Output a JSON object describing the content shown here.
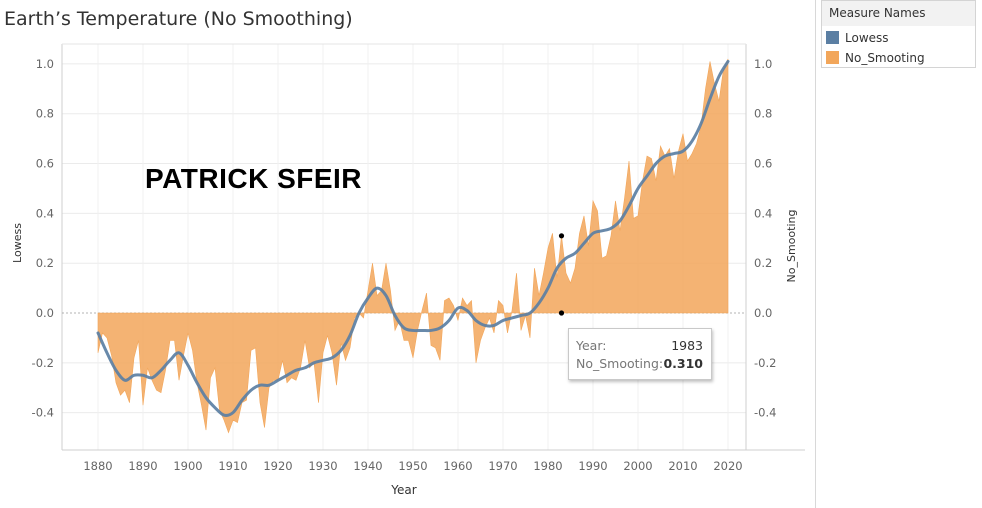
{
  "title": "Earth’s Temperature (No Smoothing)",
  "watermark_text": "PATRICK SFEIR",
  "legend": {
    "title": "Measure Names",
    "items": [
      {
        "label": "Lowess",
        "color": "#5b7fa3"
      },
      {
        "label": "No_Smooting",
        "color": "#f2a65a"
      }
    ]
  },
  "tooltip": {
    "year_label": "Year:",
    "year_value": "1983",
    "smooth_label": "No_Smooting:",
    "smooth_value": "0.310"
  },
  "chart_data": {
    "type": "area",
    "xlabel": "Year",
    "ylabel_left": "Lowess",
    "ylabel_right": "No_Smooting",
    "xlim": [
      1872,
      2024
    ],
    "ylim": [
      -0.55,
      1.08
    ],
    "x_ticks": [
      1880,
      1890,
      1900,
      1910,
      1920,
      1930,
      1940,
      1950,
      1960,
      1970,
      1980,
      1990,
      2000,
      2010,
      2020
    ],
    "y_ticks": [
      -0.4,
      -0.2,
      0.0,
      0.2,
      0.4,
      0.6,
      0.8,
      1.0
    ],
    "y_tick_labels": [
      "-0.4",
      "-0.2",
      "0.0",
      "0.2",
      "0.4",
      "0.6",
      "0.8",
      "1.0"
    ],
    "grid": true,
    "highlight": {
      "year": 1983,
      "value": 0.31
    },
    "series": [
      {
        "name": "No_Smooting",
        "color": "#f2a65a",
        "x": [
          1880,
          1881,
          1882,
          1883,
          1884,
          1885,
          1886,
          1887,
          1888,
          1889,
          1890,
          1891,
          1892,
          1893,
          1894,
          1895,
          1896,
          1897,
          1898,
          1899,
          1900,
          1901,
          1902,
          1903,
          1904,
          1905,
          1906,
          1907,
          1908,
          1909,
          1910,
          1911,
          1912,
          1913,
          1914,
          1915,
          1916,
          1917,
          1918,
          1919,
          1920,
          1921,
          1922,
          1923,
          1924,
          1925,
          1926,
          1927,
          1928,
          1929,
          1930,
          1931,
          1932,
          1933,
          1934,
          1935,
          1936,
          1937,
          1938,
          1939,
          1940,
          1941,
          1942,
          1943,
          1944,
          1945,
          1946,
          1947,
          1948,
          1949,
          1950,
          1951,
          1952,
          1953,
          1954,
          1955,
          1956,
          1957,
          1958,
          1959,
          1960,
          1961,
          1962,
          1963,
          1964,
          1965,
          1966,
          1967,
          1968,
          1969,
          1970,
          1971,
          1972,
          1973,
          1974,
          1975,
          1976,
          1977,
          1978,
          1979,
          1980,
          1981,
          1982,
          1983,
          1984,
          1985,
          1986,
          1987,
          1988,
          1989,
          1990,
          1991,
          1992,
          1993,
          1994,
          1995,
          1996,
          1997,
          1998,
          1999,
          2000,
          2001,
          2002,
          2003,
          2004,
          2005,
          2006,
          2007,
          2008,
          2009,
          2010,
          2011,
          2012,
          2013,
          2014,
          2015,
          2016,
          2017,
          2018,
          2019,
          2020
        ],
        "values": [
          -0.16,
          -0.08,
          -0.1,
          -0.17,
          -0.28,
          -0.33,
          -0.31,
          -0.36,
          -0.18,
          -0.11,
          -0.37,
          -0.22,
          -0.27,
          -0.31,
          -0.32,
          -0.23,
          -0.11,
          -0.11,
          -0.27,
          -0.17,
          -0.08,
          -0.15,
          -0.28,
          -0.37,
          -0.47,
          -0.26,
          -0.22,
          -0.39,
          -0.43,
          -0.48,
          -0.43,
          -0.44,
          -0.36,
          -0.35,
          -0.15,
          -0.14,
          -0.36,
          -0.46,
          -0.3,
          -0.27,
          -0.27,
          -0.19,
          -0.28,
          -0.26,
          -0.27,
          -0.22,
          -0.11,
          -0.22,
          -0.2,
          -0.36,
          -0.16,
          -0.09,
          -0.16,
          -0.29,
          -0.12,
          -0.19,
          -0.14,
          -0.02,
          -0.0,
          -0.02,
          0.09,
          0.2,
          0.07,
          0.09,
          0.2,
          0.09,
          -0.07,
          -0.03,
          -0.11,
          -0.11,
          -0.18,
          -0.07,
          0.01,
          0.08,
          -0.13,
          -0.14,
          -0.19,
          0.05,
          0.06,
          0.03,
          -0.03,
          0.06,
          0.03,
          0.05,
          -0.2,
          -0.11,
          -0.06,
          -0.02,
          -0.08,
          0.05,
          0.03,
          -0.08,
          0.01,
          0.16,
          -0.07,
          -0.01,
          -0.1,
          0.18,
          0.07,
          0.16,
          0.26,
          0.32,
          0.14,
          0.31,
          0.16,
          0.12,
          0.18,
          0.32,
          0.39,
          0.27,
          0.45,
          0.41,
          0.22,
          0.23,
          0.31,
          0.45,
          0.33,
          0.46,
          0.61,
          0.38,
          0.39,
          0.53,
          0.63,
          0.62,
          0.53,
          0.67,
          0.63,
          0.66,
          0.54,
          0.65,
          0.72,
          0.61,
          0.64,
          0.68,
          0.75,
          0.9,
          1.01,
          0.92,
          0.85,
          0.98,
          1.02
        ]
      },
      {
        "name": "Lowess",
        "color": "#5b7fa3",
        "x": [
          1880,
          1882,
          1884,
          1886,
          1888,
          1890,
          1892,
          1894,
          1896,
          1898,
          1900,
          1902,
          1904,
          1906,
          1908,
          1910,
          1912,
          1914,
          1916,
          1918,
          1920,
          1922,
          1924,
          1926,
          1928,
          1930,
          1932,
          1934,
          1936,
          1938,
          1940,
          1942,
          1944,
          1946,
          1948,
          1950,
          1952,
          1954,
          1956,
          1958,
          1960,
          1962,
          1964,
          1966,
          1968,
          1970,
          1972,
          1974,
          1976,
          1978,
          1980,
          1982,
          1984,
          1986,
          1988,
          1990,
          1992,
          1994,
          1996,
          1998,
          2000,
          2002,
          2004,
          2006,
          2008,
          2010,
          2012,
          2014,
          2016,
          2018,
          2020
        ],
        "values": [
          -0.08,
          -0.16,
          -0.23,
          -0.27,
          -0.25,
          -0.25,
          -0.26,
          -0.23,
          -0.19,
          -0.16,
          -0.21,
          -0.28,
          -0.34,
          -0.38,
          -0.41,
          -0.4,
          -0.35,
          -0.31,
          -0.29,
          -0.29,
          -0.27,
          -0.25,
          -0.23,
          -0.22,
          -0.2,
          -0.19,
          -0.18,
          -0.15,
          -0.09,
          0.0,
          0.06,
          0.1,
          0.07,
          -0.01,
          -0.06,
          -0.07,
          -0.07,
          -0.07,
          -0.06,
          -0.03,
          0.02,
          0.01,
          -0.03,
          -0.05,
          -0.05,
          -0.03,
          -0.02,
          -0.01,
          -0.0,
          0.04,
          0.1,
          0.18,
          0.22,
          0.24,
          0.28,
          0.32,
          0.33,
          0.34,
          0.37,
          0.43,
          0.5,
          0.55,
          0.6,
          0.63,
          0.64,
          0.65,
          0.69,
          0.76,
          0.86,
          0.95,
          1.01
        ]
      }
    ]
  }
}
